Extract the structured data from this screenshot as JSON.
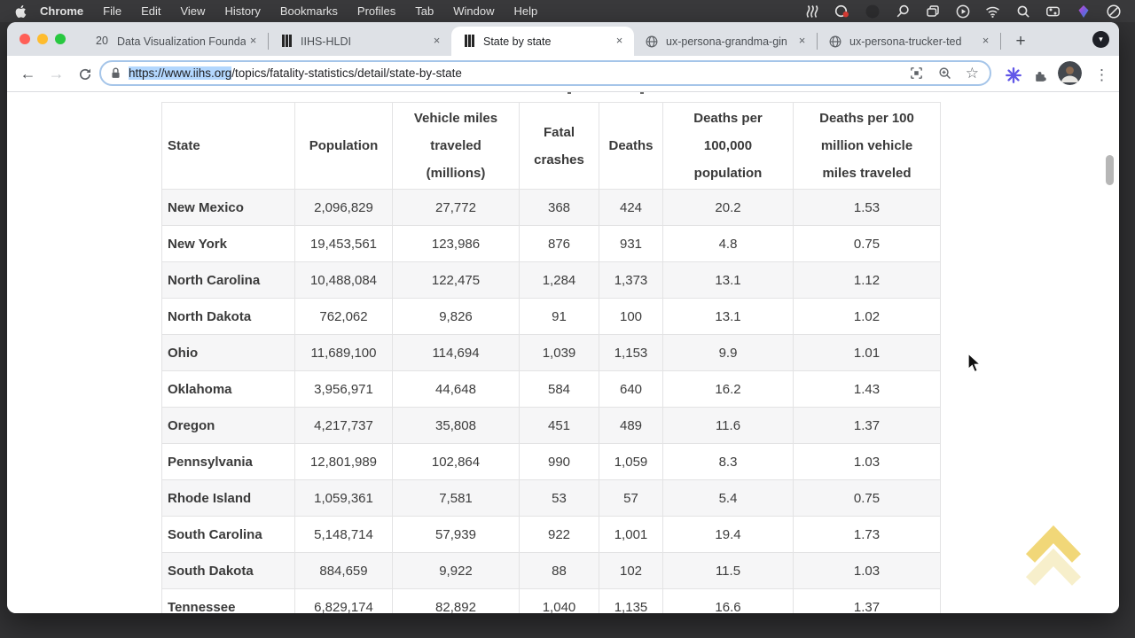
{
  "menubar": {
    "menus": [
      "Chrome",
      "File",
      "Edit",
      "View",
      "History",
      "Bookmarks",
      "Profiles",
      "Tab",
      "Window",
      "Help"
    ],
    "status_icons": [
      "shortcuts",
      "creative-cloud",
      "recording-dot",
      "zoom-loupe",
      "mission-control",
      "screen-play",
      "wifi",
      "spotlight-search",
      "control-center",
      "third-party-app",
      "do-not-disturb"
    ]
  },
  "icons": {
    "close_glyph": "×",
    "new_tab_glyph": "+",
    "tab_menu_glyph": "▾",
    "back_glyph": "←",
    "forward_glyph": "→",
    "star_glyph": "☆",
    "kebab_glyph": "⋮"
  },
  "window": {
    "tabs": [
      {
        "label": "Data Visualization Founda",
        "favicon": "calendar-20",
        "badge": "20",
        "active": false
      },
      {
        "label": "IIHS-HLDI",
        "favicon": "road",
        "active": false
      },
      {
        "label": "State by state",
        "favicon": "road",
        "active": true
      },
      {
        "label": "ux-persona-grandma-gin",
        "favicon": "globe",
        "active": false
      },
      {
        "label": "ux-persona-trucker-ted",
        "favicon": "globe",
        "active": false
      }
    ],
    "toolbar": {
      "url_selected": "https://www.iihs.org",
      "url_rest": "/topics/fatality-statistics/detail/state-by-state"
    }
  },
  "page": {
    "table": {
      "columns": [
        "State",
        "Population",
        "Vehicle miles traveled (millions)",
        "Fatal crashes",
        "Deaths",
        "Deaths per 100,000 population",
        "Deaths per 100 million vehicle miles traveled"
      ],
      "rows": [
        [
          "New Mexico",
          "2,096,829",
          "27,772",
          "368",
          "424",
          "20.2",
          "1.53"
        ],
        [
          "New York",
          "19,453,561",
          "123,986",
          "876",
          "931",
          "4.8",
          "0.75"
        ],
        [
          "North Carolina",
          "10,488,084",
          "122,475",
          "1,284",
          "1,373",
          "13.1",
          "1.12"
        ],
        [
          "North Dakota",
          "762,062",
          "9,826",
          "91",
          "100",
          "13.1",
          "1.02"
        ],
        [
          "Ohio",
          "11,689,100",
          "114,694",
          "1,039",
          "1,153",
          "9.9",
          "1.01"
        ],
        [
          "Oklahoma",
          "3,956,971",
          "44,648",
          "584",
          "640",
          "16.2",
          "1.43"
        ],
        [
          "Oregon",
          "4,217,737",
          "35,808",
          "451",
          "489",
          "11.6",
          "1.37"
        ],
        [
          "Pennsylvania",
          "12,801,989",
          "102,864",
          "990",
          "1,059",
          "8.3",
          "1.03"
        ],
        [
          "Rhode Island",
          "1,059,361",
          "7,581",
          "53",
          "57",
          "5.4",
          "0.75"
        ],
        [
          "South Carolina",
          "5,148,714",
          "57,939",
          "922",
          "1,001",
          "19.4",
          "1.73"
        ],
        [
          "South Dakota",
          "884,659",
          "9,922",
          "88",
          "102",
          "11.5",
          "1.03"
        ],
        [
          "Tennessee",
          "6,829,174",
          "82,892",
          "1,040",
          "1,135",
          "16.6",
          "1.37"
        ]
      ]
    }
  },
  "colors": {
    "selection_blue": "#b3d7fe",
    "row_stripe": "#f6f6f7",
    "tabstrip_gray": "#dee1e6",
    "menubar_dark": "#3a3a3c",
    "gold_chevron": "#ecc94b"
  }
}
